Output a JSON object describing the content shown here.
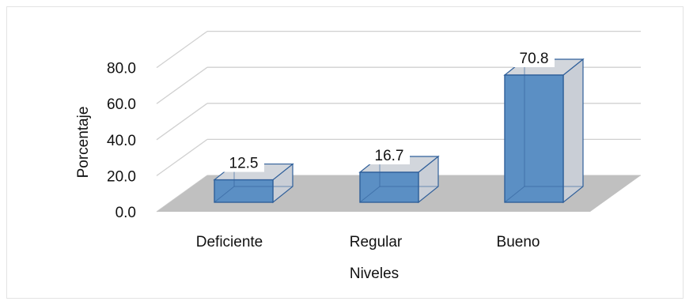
{
  "chart_data": {
    "type": "bar",
    "style": "3d-column",
    "categories": [
      "Deficiente",
      "Regular",
      "Bueno"
    ],
    "values": [
      12.5,
      16.7,
      70.8
    ],
    "data_labels": [
      "12.5",
      "16.7",
      "70.8"
    ],
    "title": "",
    "xlabel": "Niveles",
    "ylabel": "Porcentaje",
    "ylim": [
      0,
      80
    ],
    "yticks": [
      "0.0",
      "20.0",
      "40.0",
      "60.0",
      "80.0"
    ],
    "grid": true,
    "legend": "none",
    "colors": {
      "bar_front": "#5b8fc4",
      "bar_side": "#c9ced6",
      "bar_top": "#d2d6dc",
      "bar_edge": "#2f5f9a",
      "floor": "#c0c0c0",
      "grid": "#d0d0d0"
    }
  }
}
